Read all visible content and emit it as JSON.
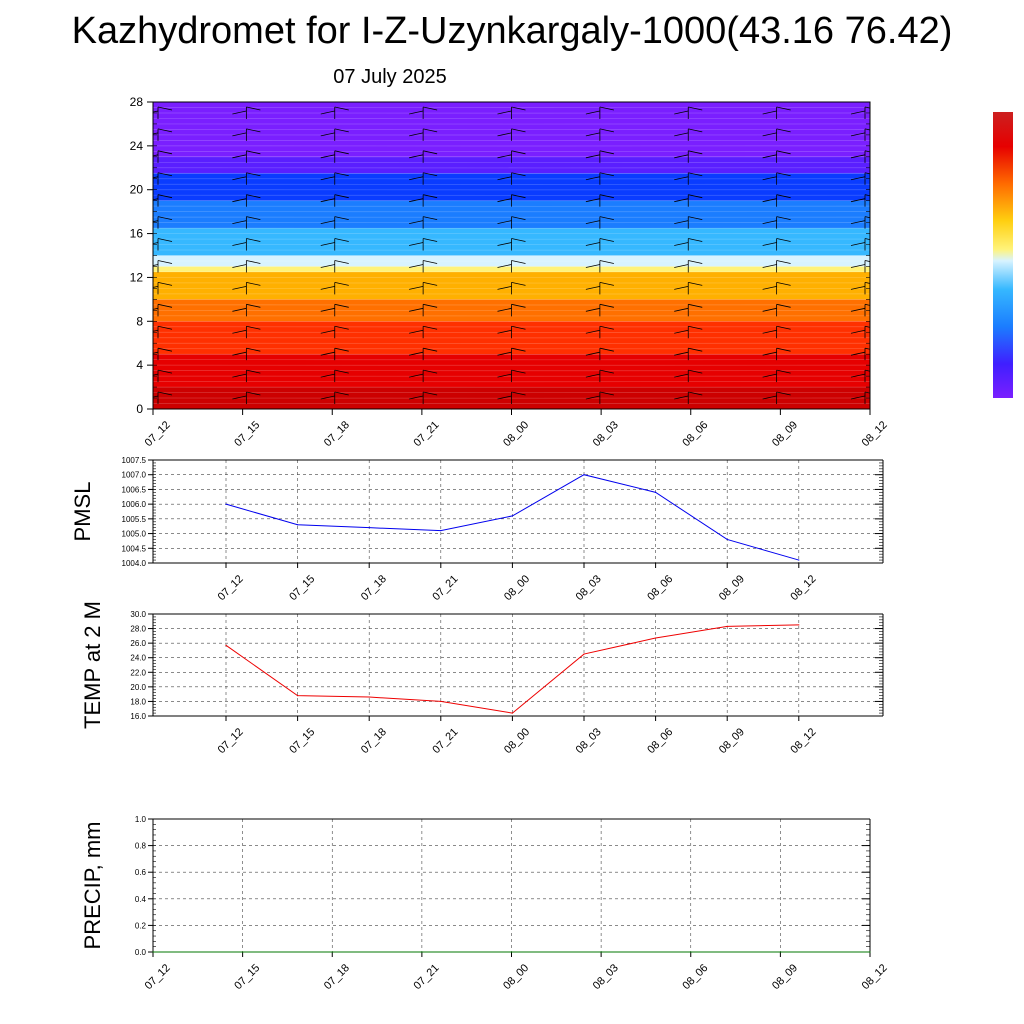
{
  "header": {
    "title": "Kazhydromet for I-Z-Uzynkargaly-1000(43.16 76.42)",
    "date": "07 July 2025"
  },
  "colors": {
    "pmsl_line": "#0000ee",
    "temp_line": "#ee0000",
    "precip_line": "#007700",
    "palette": [
      "#7a1fff",
      "#3f1fff",
      "#0a3cff",
      "#1b7dff",
      "#36b8ff",
      "#c9f1ff",
      "#fff37a",
      "#ffcf10",
      "#ff8a00",
      "#ff4a00",
      "#e60000",
      "#cc0000"
    ]
  },
  "chart_data": [
    {
      "type": "heatmap",
      "name": "height-time-section",
      "x_labels": [
        "07_12",
        "07_15",
        "07_18",
        "07_21",
        "08_00",
        "08_03",
        "08_06",
        "08_09",
        "08_12"
      ],
      "y_ticks": [
        "0",
        "4",
        "8",
        "12",
        "16",
        "20",
        "24",
        "28"
      ],
      "ylim": [
        0,
        28
      ],
      "bands": [
        {
          "from": 0,
          "to": 2,
          "color": "#cc0000"
        },
        {
          "from": 2,
          "to": 5,
          "color": "#e60000"
        },
        {
          "from": 5,
          "to": 8,
          "color": "#ff3000"
        },
        {
          "from": 8,
          "to": 10,
          "color": "#ff7000"
        },
        {
          "from": 10,
          "to": 12.5,
          "color": "#ffb000"
        },
        {
          "from": 12.5,
          "to": 13,
          "color": "#fff37a"
        },
        {
          "from": 13,
          "to": 14,
          "color": "#d8f3ff"
        },
        {
          "from": 14,
          "to": 16.5,
          "color": "#36b8ff"
        },
        {
          "from": 16.5,
          "to": 19,
          "color": "#1b7dff"
        },
        {
          "from": 19,
          "to": 21.5,
          "color": "#0a3cff"
        },
        {
          "from": 21.5,
          "to": 23,
          "color": "#5a1fff"
        },
        {
          "from": 23,
          "to": 28,
          "color": "#7a1fff"
        }
      ],
      "wind_barb_columns": 9,
      "grid": false
    },
    {
      "type": "line",
      "name": "pmsl",
      "ylabel": "PMSL",
      "x_labels": [
        "07_12",
        "07_15",
        "07_18",
        "07_21",
        "08_00",
        "08_03",
        "08_06",
        "08_09",
        "08_12"
      ],
      "values": [
        1006.0,
        1005.3,
        1005.2,
        1005.1,
        1005.6,
        1007.0,
        1006.4,
        1004.8,
        1004.1
      ],
      "y_ticks": [
        "1004.0",
        "1004.5",
        "1005.0",
        "1005.5",
        "1006.0",
        "1006.5",
        "1007.0",
        "1007.5"
      ],
      "ylim": [
        1004.0,
        1007.5
      ],
      "grid": true
    },
    {
      "type": "line",
      "name": "temperature",
      "ylabel": "TEMP at 2 M",
      "x_labels": [
        "07_12",
        "07_15",
        "07_18",
        "07_21",
        "08_00",
        "08_03",
        "08_06",
        "08_09",
        "08_12"
      ],
      "values": [
        25.7,
        18.8,
        18.6,
        18.0,
        16.4,
        24.5,
        26.7,
        28.3,
        28.5
      ],
      "y_ticks": [
        "16.0",
        "18.0",
        "20.0",
        "22.0",
        "24.0",
        "26.0",
        "28.0",
        "30.0"
      ],
      "ylim": [
        16.0,
        30.0
      ],
      "grid": true
    },
    {
      "type": "line",
      "name": "precipitation",
      "ylabel": "PRECIP, mm",
      "x_labels": [
        "07_12",
        "07_15",
        "07_18",
        "07_21",
        "08_00",
        "08_03",
        "08_06",
        "08_09",
        "08_12"
      ],
      "values": [
        0,
        0,
        0,
        0,
        0,
        0,
        0,
        0,
        0
      ],
      "y_ticks": [
        "0.0",
        "0.2",
        "0.4",
        "0.6",
        "0.8",
        "1.0"
      ],
      "ylim": [
        0.0,
        1.0
      ],
      "grid": true
    }
  ]
}
